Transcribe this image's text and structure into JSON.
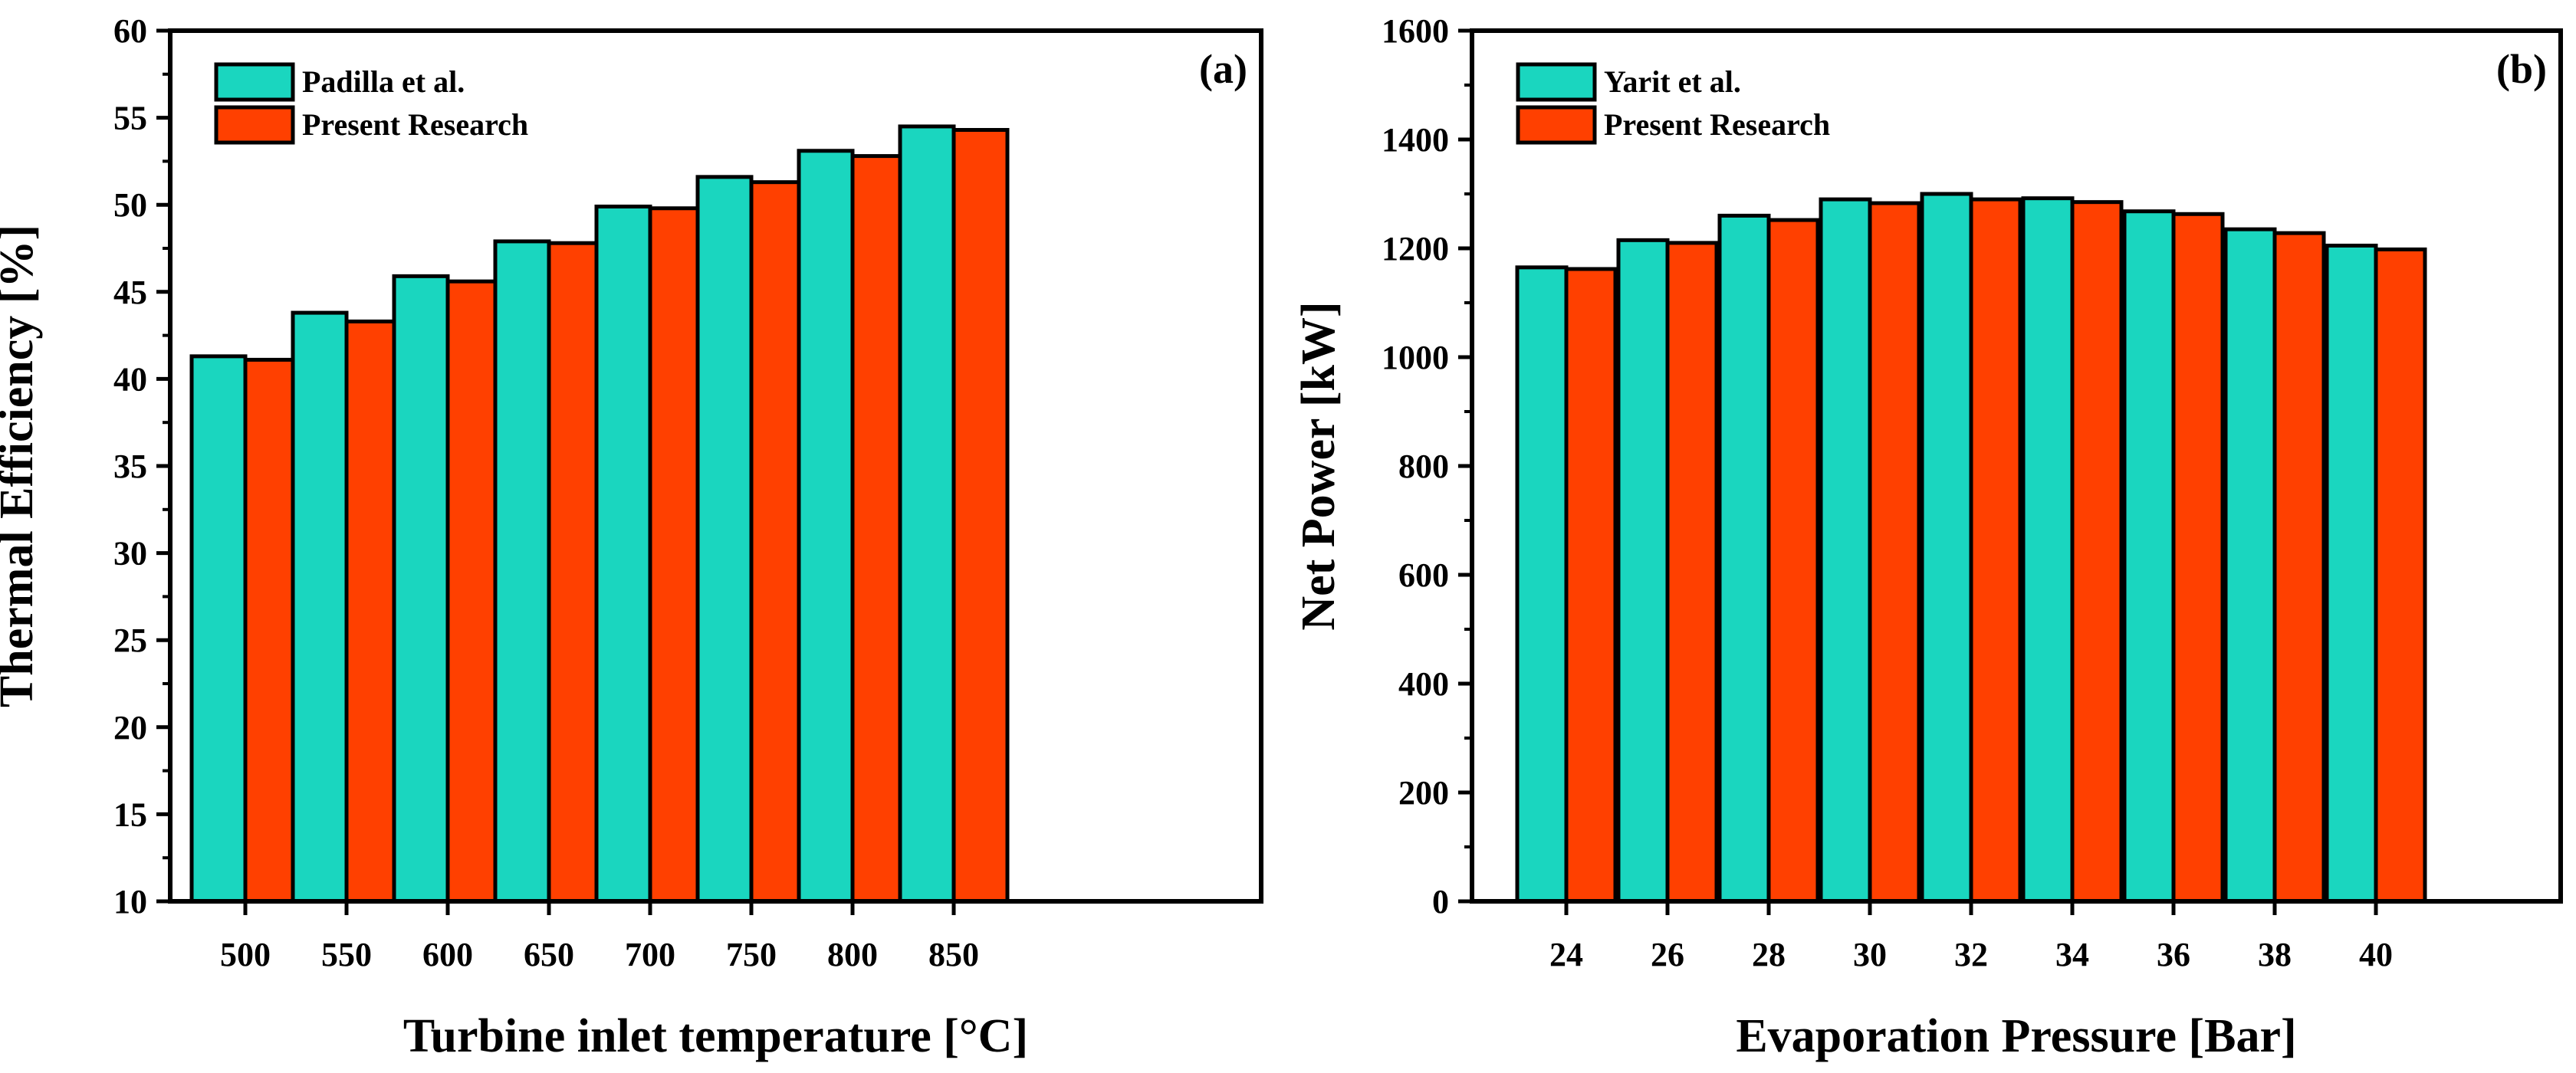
{
  "colors": {
    "series1": "#1ad6bf",
    "series2": "#ff4000",
    "stroke": "#000000"
  },
  "chart_data": [
    {
      "type": "bar",
      "panel_label": "(a)",
      "xlabel": "Turbine inlet temperature [°C]",
      "ylabel": "Thermal Efficiency [%]",
      "categories": [
        "500",
        "550",
        "600",
        "650",
        "700",
        "750",
        "800",
        "850"
      ],
      "ylim": [
        10,
        60
      ],
      "yticks": [
        "10",
        "15",
        "20",
        "25",
        "30",
        "35",
        "40",
        "45",
        "50",
        "55",
        "60"
      ],
      "legend_position": "top-left",
      "grid": false,
      "series": [
        {
          "name": "Padilla et al.",
          "values": [
            41.3,
            43.8,
            45.9,
            47.9,
            49.9,
            51.6,
            53.1,
            54.5
          ]
        },
        {
          "name": "Present Research",
          "values": [
            41.1,
            43.3,
            45.6,
            47.8,
            49.8,
            51.3,
            52.8,
            54.3
          ]
        }
      ]
    },
    {
      "type": "bar",
      "panel_label": "(b)",
      "xlabel": "Evaporation Pressure [Bar]",
      "ylabel": "Net Power [kW]",
      "categories": [
        "24",
        "26",
        "28",
        "30",
        "32",
        "34",
        "36",
        "38",
        "40"
      ],
      "ylim": [
        0,
        1600
      ],
      "yticks": [
        "0",
        "200",
        "400",
        "600",
        "800",
        "1000",
        "1200",
        "1400",
        "1600"
      ],
      "legend_position": "top-left",
      "grid": false,
      "series": [
        {
          "name": "Yarit et al.",
          "values": [
            1165,
            1215,
            1260,
            1290,
            1300,
            1292,
            1268,
            1235,
            1205
          ]
        },
        {
          "name": "Present Research",
          "values": [
            1162,
            1210,
            1252,
            1283,
            1290,
            1285,
            1263,
            1228,
            1198
          ]
        }
      ]
    }
  ]
}
